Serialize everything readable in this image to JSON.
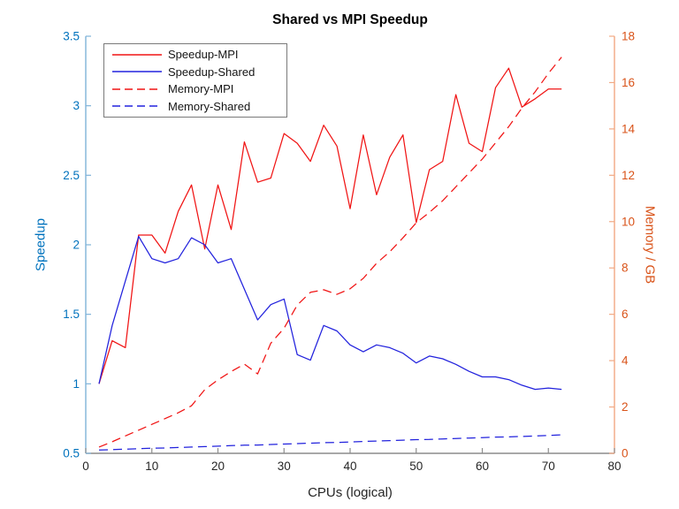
{
  "figure": {
    "title": "Shared vs MPI Speedup",
    "x_axis": {
      "label": "CPUs (logical)",
      "ticks": [
        "0",
        "10",
        "20",
        "30",
        "40",
        "50",
        "60",
        "70",
        "80"
      ],
      "tick_values": [
        0,
        10,
        20,
        30,
        40,
        50,
        60,
        70,
        80
      ],
      "color": "#262626"
    },
    "y_axis_left": {
      "label": "Speedup",
      "ticks": [
        "0.5",
        "1",
        "1.5",
        "2",
        "2.5",
        "3",
        "3.5"
      ],
      "tick_values": [
        0.5,
        1,
        1.5,
        2,
        2.5,
        3,
        3.5
      ],
      "color": "#0072BD"
    },
    "y_axis_right": {
      "label": "Memory / GB",
      "ticks": [
        "0",
        "2",
        "4",
        "6",
        "8",
        "10",
        "12",
        "14",
        "16",
        "18"
      ],
      "tick_values": [
        0,
        2,
        4,
        6,
        8,
        10,
        12,
        14,
        16,
        18
      ],
      "color": "#D95319"
    }
  },
  "chart_data": {
    "type": "line",
    "title": "Shared vs MPI Speedup",
    "xlabel": "CPUs (logical)",
    "ylabel_left": "Speedup",
    "ylabel_right": "Memory / GB",
    "xlim": [
      0,
      80
    ],
    "ylim_left": [
      0.5,
      3.5
    ],
    "ylim_right": [
      0,
      18
    ],
    "grid": false,
    "legend_position": "top-left",
    "x": [
      2,
      4,
      6,
      8,
      10,
      12,
      14,
      16,
      18,
      20,
      22,
      24,
      26,
      28,
      30,
      32,
      34,
      36,
      38,
      40,
      42,
      44,
      46,
      48,
      50,
      52,
      54,
      56,
      58,
      60,
      62,
      64,
      66,
      68,
      70,
      72
    ],
    "series": [
      {
        "name": "Speedup-MPI",
        "axis": "left",
        "style": "solid",
        "color": "#f01414",
        "values": [
          1.0,
          1.31,
          1.26,
          2.07,
          2.07,
          1.94,
          2.24,
          2.43,
          1.97,
          2.43,
          2.11,
          2.74,
          2.45,
          2.48,
          2.8,
          2.73,
          2.6,
          2.86,
          2.71,
          2.26,
          2.79,
          2.36,
          2.63,
          2.79,
          2.16,
          2.54,
          2.6,
          3.08,
          2.73,
          2.67,
          3.13,
          3.27,
          2.99,
          3.05,
          3.12,
          3.12
        ]
      },
      {
        "name": "Speedup-Shared",
        "axis": "left",
        "style": "solid",
        "color": "#2222dd",
        "values": [
          1.0,
          1.42,
          1.74,
          2.06,
          1.9,
          1.87,
          1.9,
          2.05,
          2.0,
          1.87,
          1.9,
          1.68,
          1.46,
          1.57,
          1.61,
          1.21,
          1.17,
          1.42,
          1.38,
          1.28,
          1.23,
          1.28,
          1.26,
          1.22,
          1.15,
          1.2,
          1.18,
          1.14,
          1.09,
          1.05,
          1.05,
          1.03,
          0.99,
          0.96,
          0.97,
          0.96
        ]
      },
      {
        "name": "Memory-MPI",
        "axis": "right",
        "style": "dashed",
        "color": "#f01414",
        "values": [
          0.27,
          0.5,
          0.75,
          1.0,
          1.25,
          1.5,
          1.75,
          2.05,
          2.75,
          3.17,
          3.53,
          3.85,
          3.43,
          4.75,
          5.4,
          6.4,
          6.95,
          7.06,
          6.86,
          7.1,
          7.55,
          8.2,
          8.7,
          9.3,
          9.95,
          10.4,
          10.9,
          11.5,
          12.1,
          12.7,
          13.4,
          14.1,
          14.9,
          15.6,
          16.4,
          17.1
        ]
      },
      {
        "name": "Memory-Shared",
        "axis": "right",
        "style": "dashed",
        "color": "#2222dd",
        "values": [
          0.14,
          0.16,
          0.18,
          0.2,
          0.22,
          0.23,
          0.25,
          0.27,
          0.29,
          0.31,
          0.33,
          0.35,
          0.36,
          0.38,
          0.4,
          0.42,
          0.44,
          0.46,
          0.47,
          0.49,
          0.51,
          0.53,
          0.55,
          0.57,
          0.59,
          0.6,
          0.62,
          0.64,
          0.66,
          0.68,
          0.7,
          0.71,
          0.73,
          0.75,
          0.77,
          0.8
        ]
      }
    ]
  }
}
